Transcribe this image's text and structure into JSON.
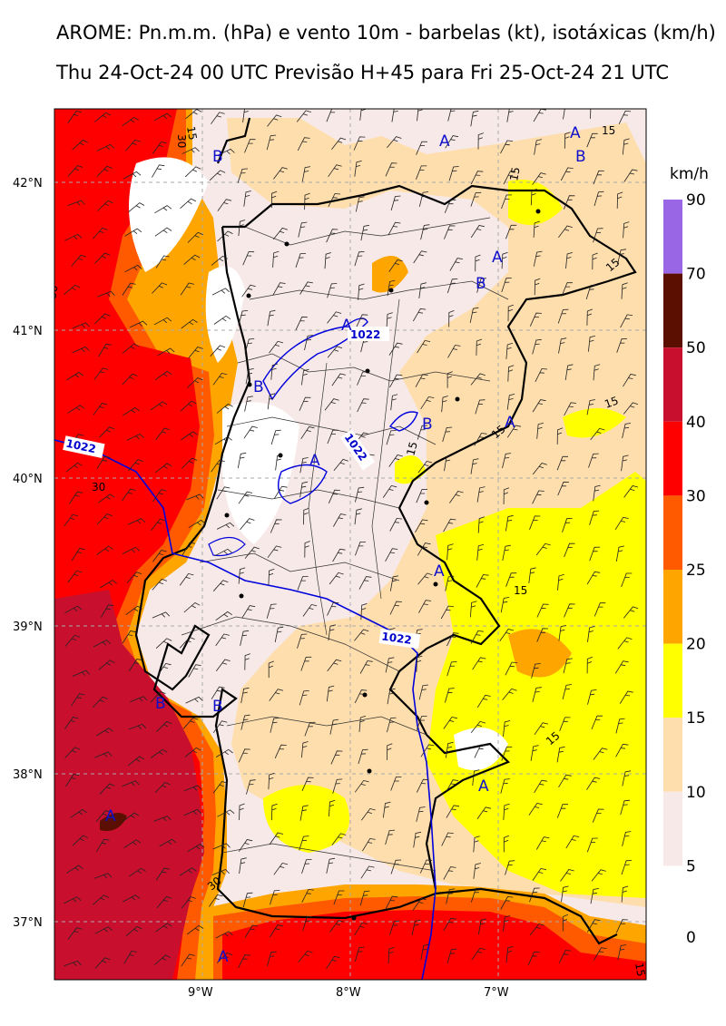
{
  "title_line1": "AROME: Pn.m.m. (hPa) e vento 10m - barbelas (kt), isotáxicas (km/h)",
  "title_line2": "Thu 24-Oct-24 00 UTC Previsão H+45 para Fri 25-Oct-24 21 UTC",
  "lat_labels": [
    "42°N",
    "41°N",
    "40°N",
    "39°N",
    "38°N",
    "37°N"
  ],
  "lon_labels": [
    "9°W",
    "8°W",
    "7°W"
  ],
  "colorbar": {
    "unit": "km/h",
    "ticks": [
      "90",
      "70",
      "50",
      "40",
      "30",
      "25",
      "20",
      "15",
      "10",
      "5",
      "0"
    ],
    "colors": [
      "#9966e6",
      "#5a0f00",
      "#c8102e",
      "#ff0000",
      "#ff5a00",
      "#ffa500",
      "#ffff00",
      "#ffdead",
      "#f7e9e7"
    ]
  },
  "isobar_labels": [
    "1022",
    "1022",
    "1022",
    "1022"
  ],
  "speed_labels": [
    "15",
    "30",
    "15",
    "15",
    "30",
    "15",
    "15",
    "15",
    "15",
    "15",
    "30",
    "15",
    "30",
    "15"
  ],
  "pressure_centers": [
    "A",
    "B",
    "A",
    "B",
    "A",
    "B",
    "A",
    "B",
    "B",
    "A",
    "B",
    "A",
    "A",
    "B",
    "A",
    "A",
    "A"
  ]
}
